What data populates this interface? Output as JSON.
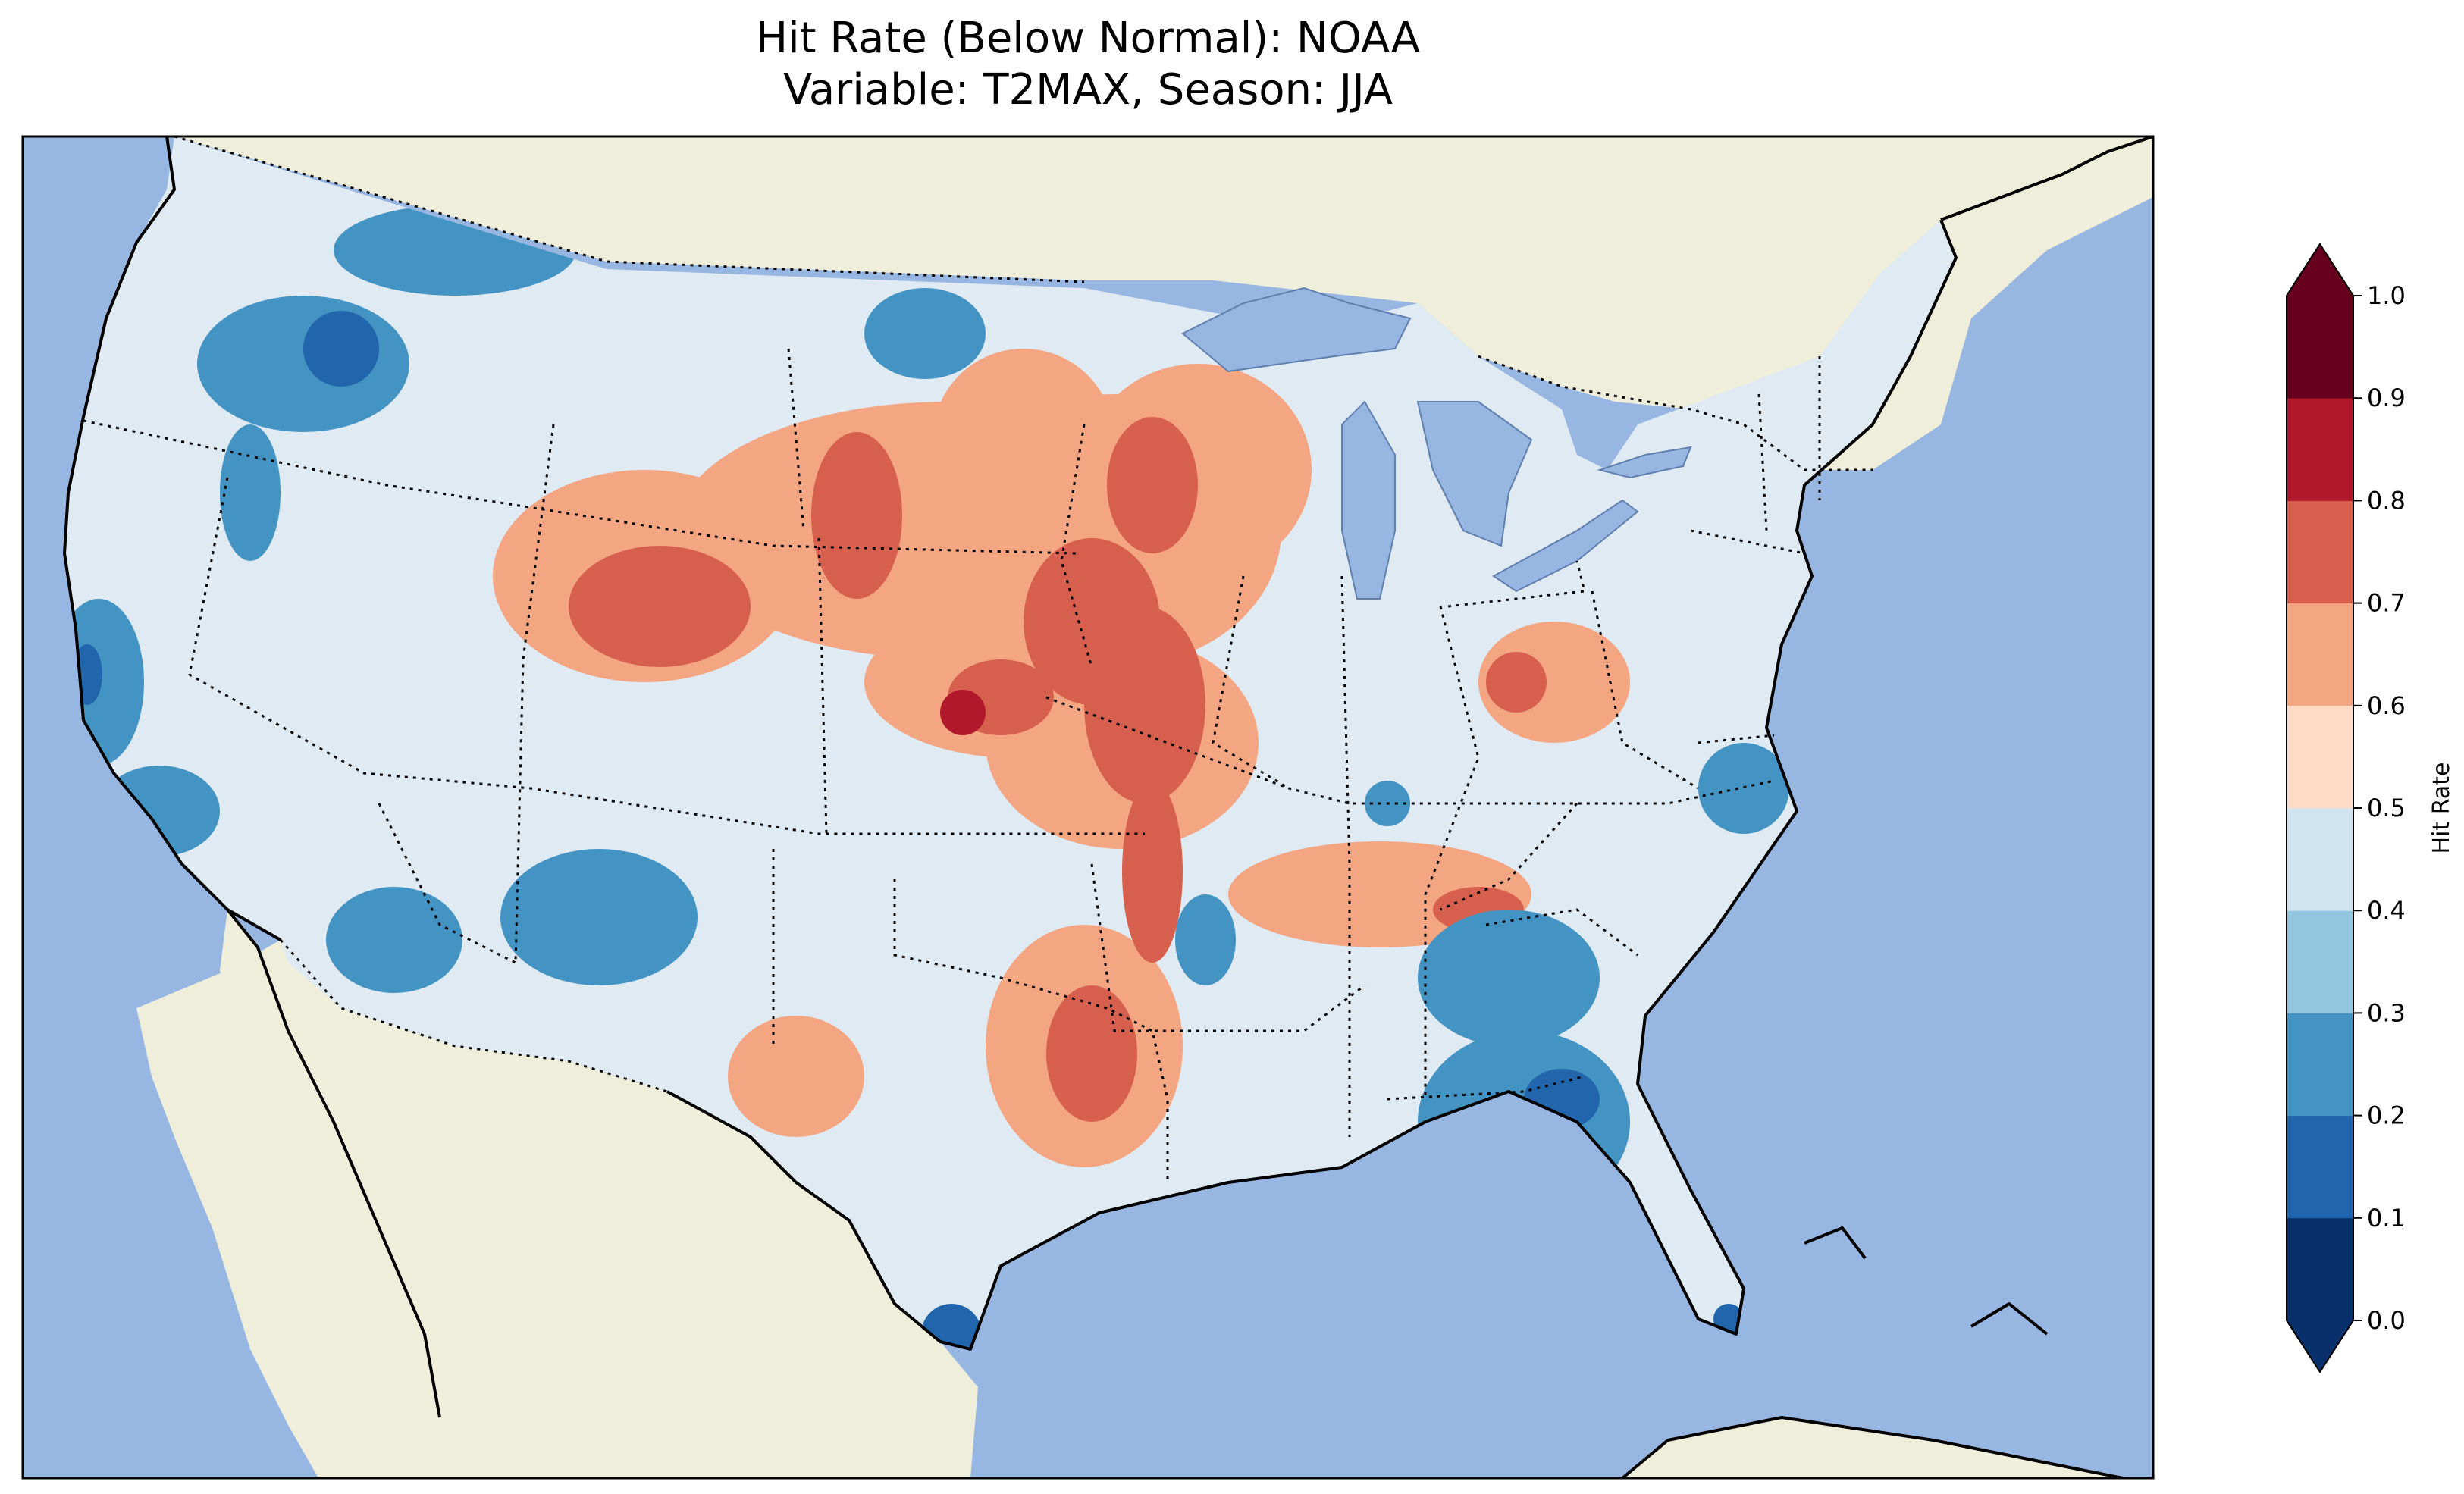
{
  "title": {
    "line1": "Hit Rate (Below Normal): NOAA",
    "line2": "Variable: T2MAX, Season: JJA"
  },
  "colorbar": {
    "label": "Hit Rate",
    "ticks": [
      "0.0",
      "0.1",
      "0.2",
      "0.3",
      "0.4",
      "0.5",
      "0.6",
      "0.7",
      "0.8",
      "0.9",
      "1.0"
    ],
    "colors": [
      "#08306b",
      "#2166ac",
      "#4393c3",
      "#92c5de",
      "#d1e5f0",
      "#fddbc7",
      "#f4a582",
      "#d6604d",
      "#b2182b",
      "#67001f"
    ],
    "extend": "both"
  },
  "map": {
    "ocean_color": "#97b6e1",
    "land_color": "#efeedb",
    "default_fill_color": "#dfeaf3"
  }
}
